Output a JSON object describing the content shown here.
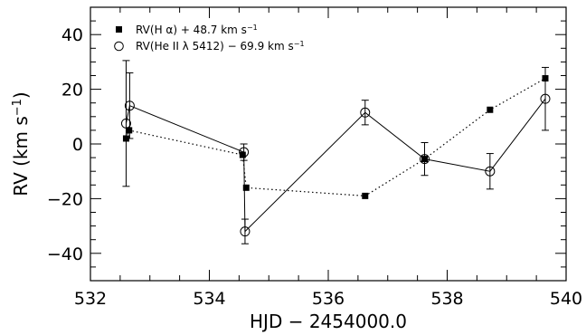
{
  "chart_data": {
    "type": "scatter",
    "xlabel": "HJD − 2454000.0",
    "ylabel_main": "RV (km s",
    "ylabel_exp": "−1",
    "ylabel_tail": ")",
    "xlim": [
      532,
      540
    ],
    "ylim": [
      -50,
      50
    ],
    "xticks": [
      532,
      534,
      536,
      538,
      540
    ],
    "yticks": [
      -40,
      -20,
      0,
      20,
      40
    ],
    "xtick_labels": [
      "532",
      "534",
      "536",
      "538",
      "540"
    ],
    "ytick_labels": [
      "−40",
      "−20",
      "0",
      "20",
      "40"
    ],
    "grid": false,
    "legend_position": "top-left",
    "series": [
      {
        "name_main": "RV(H α) + 48.7 km s",
        "name_exp": "−1",
        "marker": "filled-square",
        "line_style": "dotted",
        "x": [
          532.6,
          532.65,
          534.56,
          534.62,
          536.62,
          537.62,
          538.72,
          539.65
        ],
        "y": [
          2.0,
          5.0,
          -4.0,
          -16.0,
          -19.0,
          -5.5,
          12.5,
          24.0
        ],
        "err": [
          null,
          null,
          null,
          null,
          null,
          null,
          null,
          null
        ]
      },
      {
        "name_main": "RV(He II λ 5412) − 69.9 km s",
        "name_exp": "−1",
        "marker": "open-circle",
        "line_style": "solid",
        "x": [
          532.6,
          532.66,
          534.58,
          534.6,
          536.62,
          537.62,
          538.72,
          539.65
        ],
        "y": [
          7.5,
          14.0,
          -3.0,
          -32.0,
          11.5,
          -5.5,
          -10.0,
          16.5
        ],
        "err": [
          23.0,
          12.0,
          3.0,
          4.5,
          4.5,
          6.0,
          6.5,
          11.5
        ]
      }
    ]
  }
}
